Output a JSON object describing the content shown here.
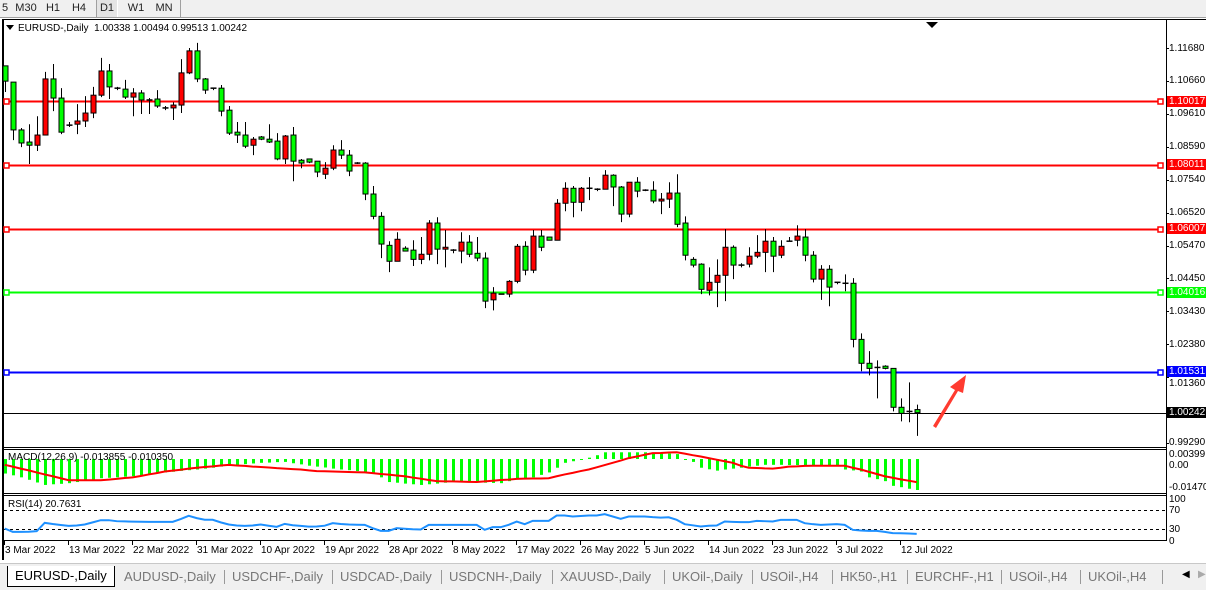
{
  "toolbar": {
    "timeframes": [
      "5",
      "M30",
      "H1",
      "H4",
      "D1",
      "W1",
      "MN"
    ],
    "selected": "D1"
  },
  "chart": {
    "symbol_label": "EURUSD-,Daily",
    "ohlc_text": "1.00338 1.00494 0.99513 1.00242"
  },
  "colors": {
    "bull_candle": "#ff0000",
    "bear_candle": "#00ff00",
    "macd_histogram": "#00ff00",
    "macd_signal": "#ff0000",
    "rsi_line": "#1e90ff",
    "annotation_arrow": "#ff3b30"
  },
  "chart_data": {
    "type": "candlestick",
    "symbol": "EURUSD-",
    "timeframe": "Daily",
    "bull_color": "red",
    "bear_color": "green",
    "price_ticks": [
      "1.11680",
      "1.10660",
      "1.09610",
      "1.08590",
      "1.07540",
      "1.06520",
      "1.05470",
      "1.04450",
      "1.03430",
      "1.02380",
      "1.01360",
      "0.99290"
    ],
    "x_tick_labels": [
      "3 Mar 2022",
      "13 Mar 2022",
      "22 Mar 2022",
      "31 Mar 2022",
      "10 Apr 2022",
      "19 Apr 2022",
      "28 Apr 2022",
      "8 May 2022",
      "17 May 2022",
      "26 May 2022",
      "5 Jun 2022",
      "14 Jun 2022",
      "23 Jun 2022",
      "3 Jul 2022",
      "12 Jul 2022"
    ],
    "levels": [
      {
        "value": 1.10017,
        "label": "1.10017",
        "color": "#ff0000"
      },
      {
        "value": 1.08011,
        "label": "1.08011",
        "color": "#ff0000"
      },
      {
        "value": 1.06007,
        "label": "1.06007",
        "color": "#ff0000"
      },
      {
        "value": 1.04016,
        "label": "1.04016",
        "color": "#00ff00"
      },
      {
        "value": 1.01531,
        "label": "1.01531",
        "color": "#0000ff"
      }
    ],
    "current_price": {
      "value": 1.00242,
      "label": "1.00242",
      "color": "#000000"
    },
    "candles_ohlc": [
      [
        1.1112,
        1.1112,
        1.103,
        1.1064
      ],
      [
        1.1061,
        1.1061,
        1.0879,
        1.0911
      ],
      [
        1.0911,
        1.0917,
        1.0857,
        1.087
      ],
      [
        1.0873,
        1.0929,
        1.0804,
        1.0863
      ],
      [
        1.0863,
        1.0954,
        1.0845,
        1.0895
      ],
      [
        1.0895,
        1.1093,
        1.0895,
        1.1071
      ],
      [
        1.1071,
        1.1118,
        1.097,
        1.1011
      ],
      [
        1.1011,
        1.1042,
        1.0898,
        1.0904
      ],
      [
        1.0926,
        1.0936,
        1.092,
        1.0926
      ],
      [
        1.0929,
        1.0992,
        1.0898,
        1.0939
      ],
      [
        1.0939,
        1.1017,
        1.092,
        1.0964
      ],
      [
        1.0964,
        1.1046,
        1.0948,
        1.102
      ],
      [
        1.102,
        1.1137,
        1.1014,
        1.1096
      ],
      [
        1.1096,
        1.1118,
        1.1008,
        1.1046
      ],
      [
        1.1042,
        1.1046,
        1.1036,
        1.1042
      ],
      [
        1.1039,
        1.1068,
        1.1008,
        1.1014
      ],
      [
        1.1014,
        1.1042,
        1.0954,
        1.1027
      ],
      [
        1.1027,
        1.1036,
        1.0961,
        1.1005
      ],
      [
        1.1005,
        1.1011,
        1.0961,
        1.1005
      ],
      [
        1.1008,
        1.1036,
        1.098,
        1.0986
      ],
      [
        1.098,
        1.0986,
        1.0973,
        1.098
      ],
      [
        1.098,
        1.0998,
        1.0942,
        1.0989
      ],
      [
        1.0989,
        1.1133,
        1.0964,
        1.109
      ],
      [
        1.109,
        1.1168,
        1.1086,
        1.1159
      ],
      [
        1.1159,
        1.1184,
        1.1061,
        1.1071
      ],
      [
        1.1071,
        1.1074,
        1.1024,
        1.1036
      ],
      [
        1.1042,
        1.1042,
        1.1036,
        1.1042
      ],
      [
        1.1042,
        1.1052,
        1.0954,
        1.097
      ],
      [
        1.0973,
        1.0986,
        1.0895,
        1.0901
      ],
      [
        1.0904,
        1.0936,
        1.087,
        1.0895
      ],
      [
        1.0895,
        1.0936,
        1.0854,
        1.086
      ],
      [
        1.0863,
        1.0889,
        1.0832,
        1.0882
      ],
      [
        1.0889,
        1.0892,
        1.0879,
        1.0882
      ],
      [
        1.0882,
        1.0929,
        1.087,
        1.0873
      ],
      [
        1.0876,
        1.0901,
        1.0816,
        1.082
      ],
      [
        1.082,
        1.0895,
        1.0804,
        1.0892
      ],
      [
        1.0895,
        1.092,
        1.075,
        1.0813
      ],
      [
        1.0816,
        1.082,
        1.0791,
        1.0807
      ],
      [
        1.082,
        1.082,
        1.0807,
        1.081
      ],
      [
        1.0813,
        1.0813,
        1.0763,
        1.0779
      ],
      [
        1.0772,
        1.081,
        1.0757,
        1.0791
      ],
      [
        1.0791,
        1.0863,
        1.0785,
        1.0848
      ],
      [
        1.0848,
        1.0879,
        1.082,
        1.0832
      ],
      [
        1.0832,
        1.0848,
        1.0766,
        1.0782
      ],
      [
        1.0807,
        1.081,
        1.0804,
        1.0807
      ],
      [
        1.0807,
        1.081,
        1.0691,
        1.071
      ],
      [
        1.071,
        1.0735,
        1.0631,
        1.064
      ],
      [
        1.064,
        1.0653,
        1.0509,
        1.0553
      ],
      [
        1.0549,
        1.0562,
        1.0465,
        1.0499
      ],
      [
        1.0499,
        1.059,
        1.0499,
        1.0568
      ],
      [
        1.054,
        1.0546,
        1.0531,
        1.0531
      ],
      [
        1.0534,
        1.0565,
        1.0484,
        1.0505
      ],
      [
        1.0505,
        1.0575,
        1.049,
        1.0521
      ],
      [
        1.0521,
        1.0628,
        1.0502,
        1.0619
      ],
      [
        1.0619,
        1.0637,
        1.049,
        1.0537
      ],
      [
        1.0537,
        1.0597,
        1.048,
        1.0543
      ],
      [
        1.0534,
        1.0537,
        1.0524,
        1.0534
      ],
      [
        1.0531,
        1.059,
        1.0493,
        1.0559
      ],
      [
        1.0559,
        1.0581,
        1.0512,
        1.0521
      ],
      [
        1.0524,
        1.0575,
        1.0499,
        1.0509
      ],
      [
        1.0509,
        1.0527,
        1.0352,
        1.0374
      ],
      [
        1.0378,
        1.0418,
        1.0345,
        1.0399
      ],
      [
        1.0396,
        1.0396,
        1.0396,
        1.0396
      ],
      [
        1.0396,
        1.044,
        1.0386,
        1.0436
      ],
      [
        1.0436,
        1.0553,
        1.043,
        1.0546
      ],
      [
        1.0546,
        1.0562,
        1.0455,
        1.0471
      ],
      [
        1.0471,
        1.0597,
        1.0462,
        1.0578
      ],
      [
        1.0578,
        1.0597,
        1.0531,
        1.0543
      ],
      [
        1.0575,
        1.0575,
        1.0565,
        1.0565
      ],
      [
        1.0565,
        1.0694,
        1.0565,
        1.0681
      ],
      [
        1.0681,
        1.0747,
        1.0656,
        1.0728
      ],
      [
        1.0728,
        1.0735,
        1.0637,
        1.0684
      ],
      [
        1.0684,
        1.0732,
        1.0656,
        1.0728
      ],
      [
        1.0728,
        1.0763,
        1.0691,
        1.0728
      ],
      [
        1.0725,
        1.0728,
        1.0719,
        1.0725
      ],
      [
        1.0725,
        1.0785,
        1.0725,
        1.0769
      ],
      [
        1.0769,
        1.0772,
        1.0672,
        1.0732
      ],
      [
        1.0732,
        1.0735,
        1.0622,
        1.0647
      ],
      [
        1.0647,
        1.0747,
        1.0637,
        1.0747
      ],
      [
        1.0747,
        1.0763,
        1.07,
        1.0719
      ],
      [
        1.0722,
        1.0725,
        1.0719,
        1.0722
      ],
      [
        1.0722,
        1.075,
        1.0681,
        1.0688
      ],
      [
        1.0688,
        1.0713,
        1.0647,
        1.0694
      ],
      [
        1.0694,
        1.0747,
        1.0666,
        1.0713
      ],
      [
        1.0713,
        1.0772,
        1.0606,
        1.0615
      ],
      [
        1.0619,
        1.064,
        1.0502,
        1.0518
      ],
      [
        1.0505,
        1.0512,
        1.048,
        1.0487
      ],
      [
        1.049,
        1.0493,
        1.0396,
        1.0411
      ],
      [
        1.0408,
        1.048,
        1.0392,
        1.0433
      ],
      [
        1.0433,
        1.0505,
        1.0355,
        1.0455
      ],
      [
        1.0455,
        1.06,
        1.0374,
        1.0543
      ],
      [
        1.0543,
        1.0549,
        1.0443,
        1.0487
      ],
      [
        1.0487,
        1.0493,
        1.048,
        1.0487
      ],
      [
        1.049,
        1.0543,
        1.048,
        1.0515
      ],
      [
        1.0515,
        1.0581,
        1.0509,
        1.0527
      ],
      [
        1.0527,
        1.06,
        1.0465,
        1.0562
      ],
      [
        1.0562,
        1.0575,
        1.0465,
        1.0515
      ],
      [
        1.0518,
        1.0565,
        1.0509,
        1.0546
      ],
      [
        1.0562,
        1.0575,
        1.0562,
        1.0562
      ],
      [
        1.0565,
        1.0612,
        1.0546,
        1.0578
      ],
      [
        1.0575,
        1.06,
        1.0499,
        1.0518
      ],
      [
        1.0518,
        1.0531,
        1.0433,
        1.0443
      ],
      [
        1.0443,
        1.0487,
        1.0378,
        1.0474
      ],
      [
        1.0474,
        1.0487,
        1.0358,
        1.0418
      ],
      [
        1.0433,
        1.0433,
        1.0427,
        1.043
      ],
      [
        1.043,
        1.0458,
        1.0405,
        1.043
      ],
      [
        1.043,
        1.0446,
        1.0229,
        1.0254
      ],
      [
        1.0254,
        1.0273,
        1.0154,
        1.0179
      ],
      [
        1.0179,
        1.0217,
        1.0141,
        1.0163
      ],
      [
        1.0166,
        1.0188,
        1.0069,
        1.0166
      ],
      [
        1.017,
        1.0173,
        1.016,
        1.0163
      ],
      [
        1.0163,
        1.0163,
        1.0028,
        1.0041
      ],
      [
        1.0041,
        1.0069,
        0.9997,
        1.0022
      ],
      [
        1.0028,
        1.0119,
        0.9994,
        1.0028
      ],
      [
        1.00338,
        1.00494,
        0.99513,
        1.00242
      ]
    ],
    "macd": {
      "label": "MACD(12,26,9) -0.013855 -0.010350",
      "axis_ticks": [
        "0.00399",
        "0.00",
        "-0.01470"
      ],
      "histogram": [
        -0.0065,
        -0.0073,
        -0.0082,
        -0.0093,
        -0.0105,
        -0.0116,
        -0.0113,
        -0.0111,
        -0.0108,
        -0.0103,
        -0.0097,
        -0.0092,
        -0.0086,
        -0.0084,
        -0.0082,
        -0.0079,
        -0.0077,
        -0.0073,
        -0.0069,
        -0.0064,
        -0.006,
        -0.0057,
        -0.0053,
        -0.005,
        -0.0047,
        -0.0043,
        -0.0039,
        -0.0034,
        -0.003,
        -0.0027,
        -0.0023,
        -0.002,
        -0.0017,
        -0.0016,
        -0.0014,
        -0.0013,
        -0.0019,
        -0.0024,
        -0.003,
        -0.0034,
        -0.0038,
        -0.0043,
        -0.0047,
        -0.005,
        -0.0054,
        -0.0058,
        -0.0062,
        -0.0082,
        -0.0103,
        -0.0106,
        -0.011,
        -0.0113,
        -0.0116,
        -0.0113,
        -0.011,
        -0.0106,
        -0.0103,
        -0.0104,
        -0.0104,
        -0.0105,
        -0.0106,
        -0.0107,
        -0.0108,
        -0.0099,
        -0.009,
        -0.0086,
        -0.0082,
        -0.0071,
        -0.006,
        -0.0039,
        -0.0017,
        -0.001,
        -0.0004,
        0.0006,
        0.0017,
        0.003,
        0.003,
        0.003,
        0.003,
        0.003,
        0.003,
        0.0028,
        0.0026,
        0.0024,
        0.0022,
        0.0,
        -0.0013,
        -0.0039,
        -0.0046,
        -0.0052,
        -0.0047,
        -0.0043,
        -0.0039,
        -0.0034,
        -0.003,
        -0.0026,
        -0.0026,
        -0.0026,
        -0.0027,
        -0.0027,
        -0.0028,
        -0.0028,
        -0.0029,
        -0.0029,
        -0.003,
        -0.0047,
        -0.0051,
        -0.0056,
        -0.0082,
        -0.009,
        -0.0099,
        -0.012,
        -0.0126,
        -0.0133,
        -0.013855
      ],
      "signal": [
        -0.0026,
        -0.0034,
        -0.0043,
        -0.0051,
        -0.006,
        -0.0069,
        -0.0077,
        -0.0086,
        -0.0095,
        -0.0095,
        -0.0095,
        -0.0095,
        -0.0095,
        -0.0092,
        -0.0089,
        -0.0085,
        -0.0082,
        -0.0076,
        -0.0069,
        -0.0063,
        -0.0056,
        -0.0052,
        -0.0048,
        -0.0043,
        -0.0039,
        -0.0036,
        -0.0033,
        -0.0029,
        -0.0026,
        -0.0029,
        -0.0031,
        -0.0034,
        -0.0036,
        -0.0038,
        -0.0041,
        -0.0043,
        -0.0045,
        -0.0047,
        -0.0051,
        -0.0054,
        -0.0055,
        -0.0056,
        -0.0057,
        -0.0058,
        -0.0059,
        -0.006,
        -0.0063,
        -0.0067,
        -0.007,
        -0.0074,
        -0.0077,
        -0.0083,
        -0.0088,
        -0.0094,
        -0.0099,
        -0.01,
        -0.01,
        -0.0101,
        -0.0102,
        -0.0103,
        -0.01,
        -0.0097,
        -0.0094,
        -0.0092,
        -0.0089,
        -0.0088,
        -0.0087,
        -0.0087,
        -0.0086,
        -0.0077,
        -0.0069,
        -0.0062,
        -0.0054,
        -0.0047,
        -0.0037,
        -0.0027,
        -0.0017,
        -0.0007,
        0.0004,
        0.0011,
        0.0019,
        0.0026,
        0.0027,
        0.0029,
        0.003,
        0.0024,
        0.0017,
        0.0011,
        0.0004,
        -0.0003,
        -0.001,
        -0.0017,
        -0.003,
        -0.0039,
        -0.004,
        -0.0042,
        -0.0043,
        -0.0039,
        -0.0034,
        -0.0033,
        -0.0031,
        -0.003,
        -0.003,
        -0.003,
        -0.003,
        -0.003,
        -0.0039,
        -0.0047,
        -0.0057,
        -0.0067,
        -0.0077,
        -0.0084,
        -0.0091,
        -0.0097,
        -0.01035
      ]
    },
    "rsi": {
      "label": "RSI(14) 20.7631",
      "axis_ticks": [
        "100",
        "70",
        "30",
        "0"
      ],
      "levels": [
        70,
        30
      ],
      "values": [
        32.1,
        25.1,
        25.0,
        25.2,
        26.5,
        44.0,
        41.5,
        39.5,
        37.7,
        38.5,
        40.5,
        45,
        49.6,
        49.6,
        47.5,
        47,
        46.5,
        46.3,
        46.1,
        46.1,
        46.1,
        46.1,
        52,
        58.8,
        54,
        50.5,
        50.4,
        45,
        40.5,
        38.5,
        37.7,
        38.5,
        40.5,
        38,
        35.6,
        41.9,
        39,
        37.7,
        36,
        36.3,
        38,
        43.3,
        41.5,
        40.5,
        40,
        39.8,
        32.8,
        27.2,
        27.2,
        32.8,
        31.5,
        30.5,
        30,
        39.8,
        39.8,
        39.8,
        39.8,
        39.8,
        39.8,
        39.8,
        29.3,
        34.9,
        34.9,
        39.8,
        46.8,
        41.2,
        48.2,
        48.2,
        48.2,
        59.5,
        59.5,
        57.4,
        58.5,
        59.5,
        59.5,
        62.3,
        57.4,
        52.4,
        57.4,
        57.4,
        57.4,
        56,
        55,
        55.8,
        50.3,
        41.2,
        38.8,
        36.3,
        38,
        38.4,
        46.8,
        46,
        45.5,
        45.4,
        48.2,
        47.5,
        46.8,
        50.3,
        50.3,
        50.3,
        43.3,
        41.2,
        39.8,
        40.5,
        41.2,
        39.8,
        29.3,
        28,
        27.2,
        27.2,
        25,
        22.3,
        22,
        21.5,
        20.7631
      ]
    }
  },
  "tabs": [
    {
      "label": "EURUSD-,Daily",
      "active": true
    },
    {
      "label": "AUDUSD-,Daily"
    },
    {
      "label": "USDCHF-,Daily"
    },
    {
      "label": "USDCAD-,Daily"
    },
    {
      "label": "USDCNH-,Daily"
    },
    {
      "label": "XAUUSD-,Daily"
    },
    {
      "label": "UKOil-,Daily"
    },
    {
      "label": "USOil-,H4"
    },
    {
      "label": "HK50-,H1"
    },
    {
      "label": "EURCHF-,H1"
    },
    {
      "label": "USOil-,H4"
    },
    {
      "label": "UKOil-,H4"
    }
  ],
  "tab_scroll": {
    "left_icon": "◀",
    "right_icon": "▶"
  }
}
